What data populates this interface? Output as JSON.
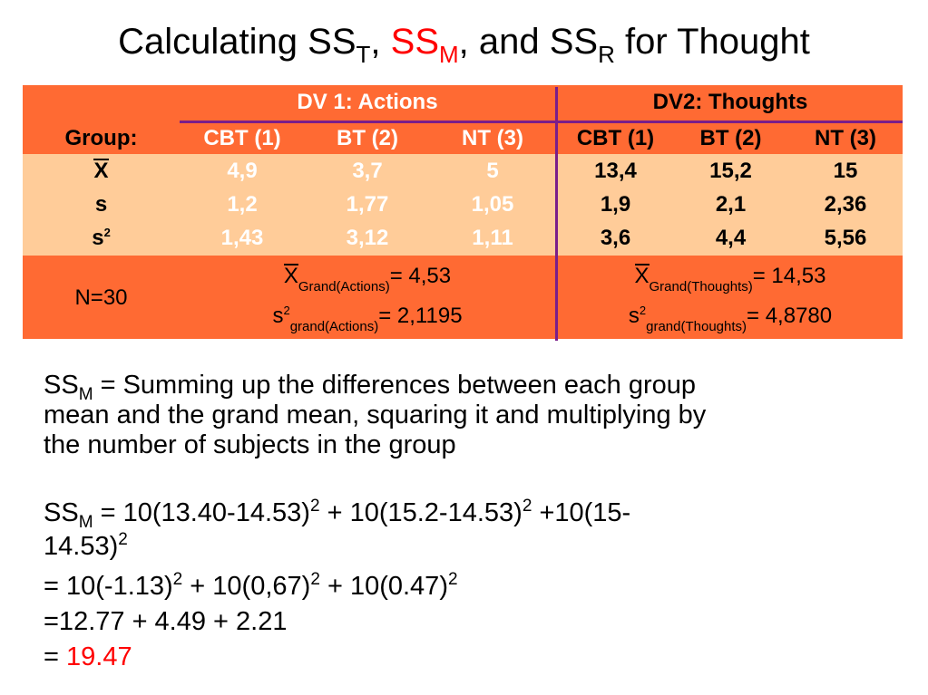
{
  "title": {
    "prefix": "Calculating SS",
    "sub_t": "T",
    "comma1": ", ",
    "ssm": "SS",
    "sub_m": "M",
    "mid": ", and SS",
    "sub_r": "R",
    "suffix": " for Thought"
  },
  "table": {
    "dv1_header": "DV 1: Actions",
    "dv2_header": "DV2: Thoughts",
    "group_label": "Group:",
    "groups": [
      "CBT (1)",
      "BT (2)",
      "NT (3)",
      "CBT (1)",
      "BT (2)",
      "NT (3)"
    ],
    "row_labels": {
      "mean": "X",
      "s": "s",
      "s2_base": "s",
      "s2_exp": "2"
    },
    "mean": [
      "4,9",
      "3,7",
      "5",
      "13,4",
      "15,2",
      "15"
    ],
    "s": [
      "1,2",
      "1,77",
      "1,05",
      "1,9",
      "2,1",
      "2,36"
    ],
    "s2": [
      "1,43",
      "3,12",
      "1,11",
      "3,6",
      "4,4",
      "5,56"
    ],
    "n_label": "N=30",
    "grand_actions": {
      "x": "X",
      "mean_sub": "Grand(Actions)",
      "mean_val": "= 4,53",
      "s": "s",
      "s_exp": "2",
      "var_sub": "grand(Actions)",
      "var_val": "= 2,1195"
    },
    "grand_thoughts": {
      "x": "X",
      "mean_sub": "Grand(Thoughts)",
      "mean_val": "= 14,53",
      "s": "s",
      "s_exp": "2",
      "var_sub": "grand(Thoughts)",
      "var_val": "= 4,8780"
    }
  },
  "definition": {
    "ss": "SS",
    "sub": "M",
    "line1": " = Summing up the differences between each group",
    "line2": "mean and the grand mean, squaring it and multiplying by",
    "line3": "the number of subjects in the group"
  },
  "calc": {
    "ss": "SS",
    "sub": "M",
    "l1a": " = 10(13.40-14.53)",
    "l1b": " + 10(15.2-14.53)",
    "l1c": " +10(15-",
    "l2a": "14.53)",
    "l3a": "=  10(-1.13)",
    "l3b": " + 10(0,67)",
    "l3c": " + 10(0.47)",
    "exp": "2",
    "l4": "=12.77 + 4.49 + 2.21",
    "l5_prefix": "= ",
    "result": "19.47"
  },
  "colors": {
    "orange": "#ff6a33",
    "peach": "#ffcc99",
    "purple": "#7a1e8a",
    "red": "#ff0000"
  }
}
